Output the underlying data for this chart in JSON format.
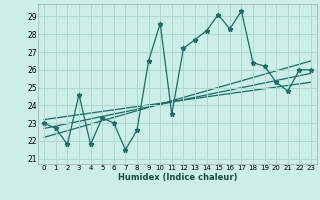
{
  "xlabel": "Humidex (Indice chaleur)",
  "bg_color": "#cceee8",
  "grid_color": "#b0d8d0",
  "line_color": "#1a6e64",
  "xlim": [
    -0.5,
    23.5
  ],
  "ylim": [
    20.7,
    29.7
  ],
  "yticks": [
    21,
    22,
    23,
    24,
    25,
    26,
    27,
    28,
    29
  ],
  "xticks": [
    0,
    1,
    2,
    3,
    4,
    5,
    6,
    7,
    8,
    9,
    10,
    11,
    12,
    13,
    14,
    15,
    16,
    17,
    18,
    19,
    20,
    21,
    22,
    23
  ],
  "series1_x": [
    0,
    1,
    2,
    3,
    4,
    5,
    6,
    7,
    8,
    9,
    10,
    11,
    12,
    13,
    14,
    15,
    16,
    17,
    18,
    19,
    20,
    21,
    22,
    23
  ],
  "series1_y": [
    23.0,
    22.7,
    21.8,
    24.6,
    21.8,
    23.3,
    23.0,
    21.5,
    22.6,
    26.5,
    28.6,
    23.5,
    27.2,
    27.7,
    28.2,
    29.1,
    28.3,
    29.3,
    26.4,
    26.2,
    25.3,
    24.8,
    26.0,
    26.0
  ],
  "series2_x": [
    0,
    23
  ],
  "series2_y": [
    22.2,
    26.5
  ],
  "series3_x": [
    0,
    23
  ],
  "series3_y": [
    22.7,
    25.8
  ],
  "series4_x": [
    0,
    23
  ],
  "series4_y": [
    23.2,
    25.3
  ]
}
